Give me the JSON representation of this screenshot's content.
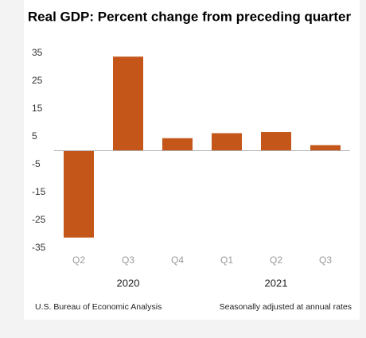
{
  "chart_data": {
    "type": "bar",
    "title": "Real GDP:  Percent change from preceding quarter",
    "categories": [
      "Q2",
      "Q3",
      "Q4",
      "Q1",
      "Q2",
      "Q3"
    ],
    "values": [
      -31.2,
      33.8,
      4.5,
      6.3,
      6.7,
      2.0
    ],
    "color": "#c5561a",
    "year_groups": [
      {
        "label": "2020",
        "span": [
          0,
          2
        ]
      },
      {
        "label": "2021",
        "span": [
          3,
          5
        ]
      }
    ],
    "ylim": [
      -35,
      35
    ],
    "yticks": [
      -35,
      -25,
      -15,
      -5,
      5,
      15,
      25,
      35
    ],
    "source": "U.S. Bureau of Economic Analysis",
    "note": "Seasonally adjusted at annual rates"
  }
}
